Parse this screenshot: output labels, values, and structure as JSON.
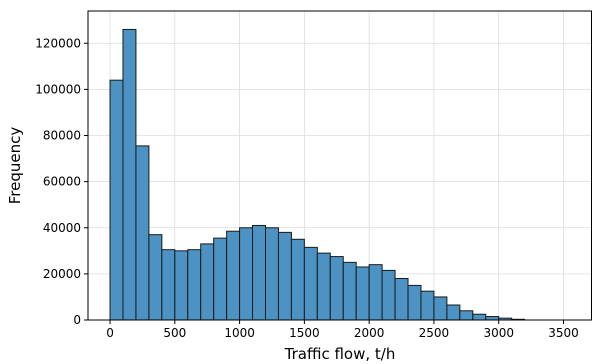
{
  "chart_data": {
    "type": "bar",
    "variant": "histogram",
    "xlabel": "Traffic flow, t/h",
    "ylabel": "Frequency",
    "xlim": [
      -170,
      3720
    ],
    "ylim": [
      0,
      134000
    ],
    "bin_width": 100,
    "bin_start": 0,
    "values": [
      104000,
      126000,
      75500,
      37000,
      30500,
      30000,
      30500,
      33000,
      35500,
      38500,
      40000,
      41000,
      40000,
      38000,
      35000,
      31500,
      29000,
      27500,
      25000,
      23000,
      24000,
      21500,
      18000,
      15000,
      12500,
      10000,
      6500,
      4000,
      2500,
      1500,
      800,
      300
    ],
    "x_ticks": [
      0,
      500,
      1000,
      1500,
      2000,
      2500,
      3000,
      3500
    ],
    "y_ticks": [
      0,
      20000,
      40000,
      60000,
      80000,
      100000,
      120000
    ],
    "grid": true,
    "bar_color": "#4c92c3",
    "edge_color": "#1a1a1a"
  }
}
